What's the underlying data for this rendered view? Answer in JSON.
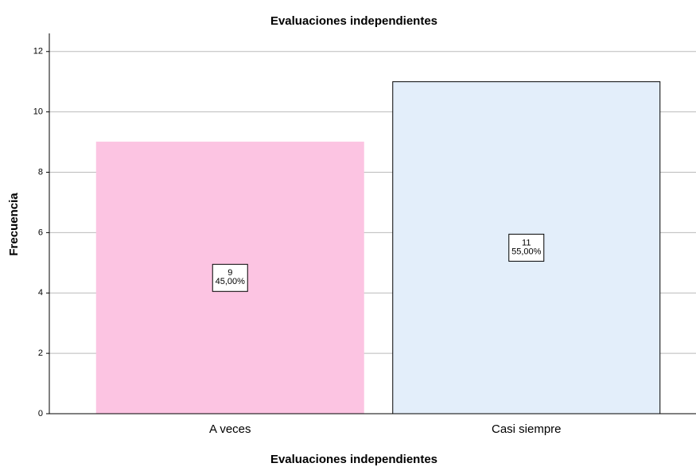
{
  "chart_data": {
    "type": "bar",
    "title": "Evaluaciones independientes",
    "x_label": "Evaluaciones independientes",
    "y_label": "Frecuencia",
    "categories": [
      "A veces",
      "Casi siempre"
    ],
    "values": [
      9,
      11
    ],
    "percent_labels": [
      "45,00%",
      "55,00%"
    ],
    "colors": [
      "#fcc4e2",
      "#e3eefa"
    ],
    "ylim": [
      0,
      12.6
    ],
    "yticks": [
      0,
      2,
      4,
      6,
      8,
      10,
      12
    ],
    "grid": true
  }
}
